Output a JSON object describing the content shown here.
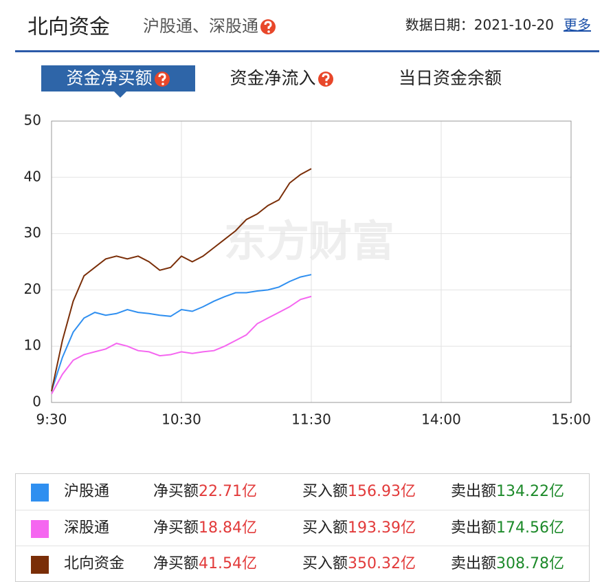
{
  "header": {
    "title": "北向资金",
    "subtitle": "沪股通、深股通",
    "date_label": "数据日期：",
    "date": "2021-10-20",
    "more": "更多"
  },
  "tabs": {
    "items": [
      "资金净买额",
      "资金净流入",
      "当日资金余额"
    ],
    "active": 0
  },
  "chart_data": {
    "type": "line",
    "watermark": "东方财富",
    "x": [
      0,
      5,
      10,
      15,
      20,
      25,
      30,
      35,
      40,
      45,
      50,
      55,
      60,
      65,
      70,
      75,
      80,
      85,
      90,
      95,
      100,
      105,
      110,
      115,
      120
    ],
    "xlim": [
      0,
      240
    ],
    "xticks": [
      {
        "value": 0,
        "label": "9:30"
      },
      {
        "value": 60,
        "label": "10:30"
      },
      {
        "value": 120,
        "label": "11:30"
      },
      {
        "value": 180,
        "label": "14:00"
      },
      {
        "value": 240,
        "label": "15:00"
      }
    ],
    "ylim": [
      0,
      50
    ],
    "yticks": [
      0,
      10,
      20,
      30,
      40,
      50
    ],
    "grid": true,
    "series": [
      {
        "name": "沪股通",
        "color": "#2f8ff0",
        "values": [
          2,
          8,
          12.5,
          15,
          16,
          15.5,
          15.8,
          16.5,
          16,
          15.8,
          15.5,
          15.3,
          16.5,
          16.2,
          17,
          18,
          18.8,
          19.5,
          19.5,
          19.8,
          20,
          20.5,
          21.5,
          22.3,
          22.71
        ]
      },
      {
        "name": "深股通",
        "color": "#f566f0",
        "values": [
          1.5,
          5,
          7.5,
          8.5,
          9,
          9.5,
          10.5,
          10,
          9.2,
          9,
          8.3,
          8.5,
          9,
          8.7,
          9,
          9.2,
          10,
          11,
          12,
          14,
          15,
          16,
          17,
          18.3,
          18.84
        ]
      },
      {
        "name": "北向资金",
        "color": "#7a2e08",
        "values": [
          2,
          11,
          18,
          22.5,
          24,
          25.5,
          26,
          25.5,
          26,
          25,
          23.5,
          24,
          26,
          25,
          26,
          27.5,
          29,
          30.5,
          32.5,
          33.5,
          35,
          36,
          39,
          40.5,
          41.54
        ]
      }
    ]
  },
  "summary": {
    "labels": [
      "净买额",
      "买入额",
      "卖出额"
    ],
    "rows": [
      [
        "22.71亿",
        "156.93亿",
        "134.22亿"
      ],
      [
        "18.84亿",
        "193.39亿",
        "174.56亿"
      ],
      [
        "41.54亿",
        "350.32亿",
        "308.78亿"
      ]
    ]
  }
}
